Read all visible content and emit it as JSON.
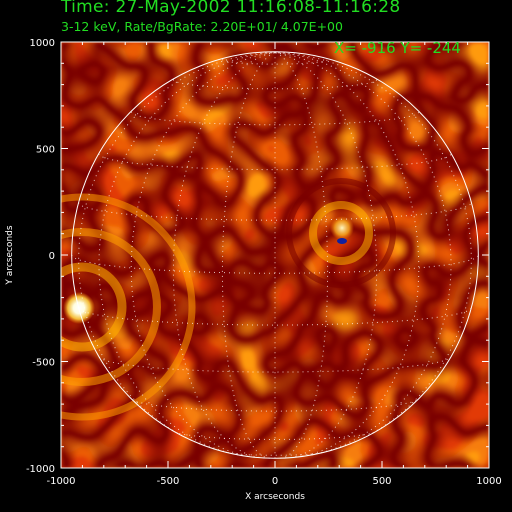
{
  "header": {
    "title": "Time: 27-May-2002 11:16:08-11:16:28",
    "subtitle": "3-12 keV, Rate/BgRate:  2.20E+01/  4.07E+00",
    "coordinate_readout": "X= -916 Y= -244",
    "text_color": "#22dd22"
  },
  "axes": {
    "x_label": "X arcseconds",
    "y_label": "Y arcseconds",
    "x_ticks": [
      "-1000",
      "-500",
      "0",
      "500",
      "1000"
    ],
    "y_ticks": [
      "1000",
      "500",
      "0",
      "-500",
      "-1000"
    ]
  },
  "image": {
    "colormap": "red-temperature",
    "solar_limb_radius_arcsec": 950,
    "bright_source": {
      "x": -916,
      "y": -244
    },
    "secondary_source": {
      "x": 310,
      "y": 60
    }
  }
}
